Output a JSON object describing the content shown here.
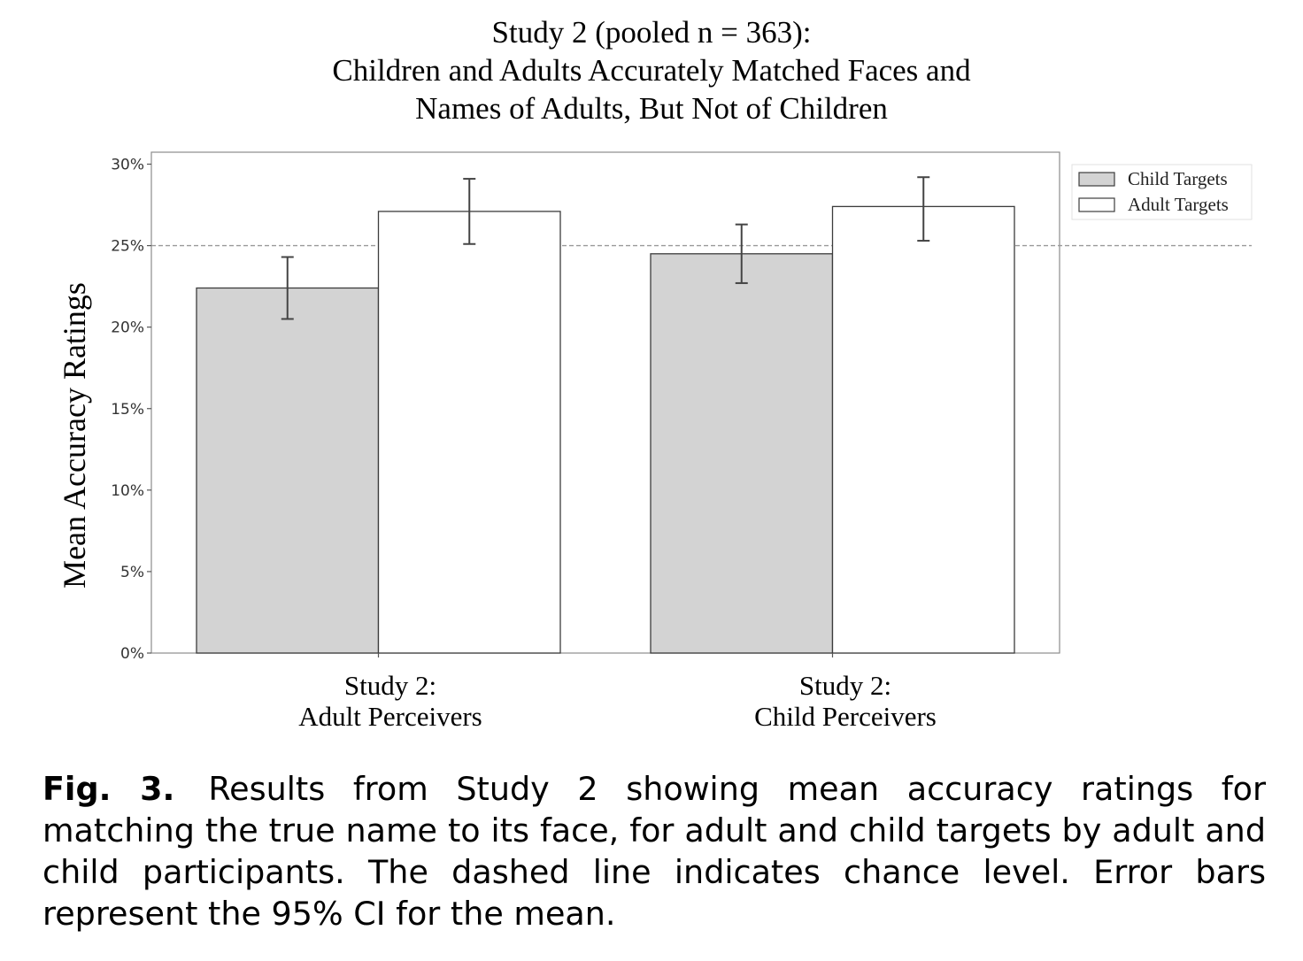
{
  "chart_data": {
    "type": "bar",
    "title_lines": [
      "Study 2 (pooled n = 363):",
      "Children and Adults Accurately Matched Faces and",
      "Names of Adults, But Not of Children"
    ],
    "ylabel": "Mean Accuracy Ratings",
    "xlabel": "",
    "categories": [
      [
        "Study 2:",
        "Adult Perceivers"
      ],
      [
        "Study 2:",
        "Child Perceivers"
      ]
    ],
    "series": [
      {
        "name": "Child Targets",
        "color": "#d3d3d3",
        "values": [
          22.4,
          24.5
        ],
        "ci_low": [
          20.5,
          22.7
        ],
        "ci_high": [
          24.3,
          26.3
        ]
      },
      {
        "name": "Adult Targets",
        "color": "#ffffff",
        "values": [
          27.1,
          27.4
        ],
        "ci_low": [
          25.1,
          25.3
        ],
        "ci_high": [
          29.1,
          29.2
        ]
      }
    ],
    "ylim": [
      0,
      30.7
    ],
    "yticks": [
      0,
      5,
      10,
      15,
      20,
      25,
      30
    ],
    "ytick_labels": [
      "0%",
      "5%",
      "10%",
      "15%",
      "20%",
      "25%",
      "30%"
    ],
    "reference_line": {
      "value": 25,
      "style": "dashed"
    },
    "legend_position": "outside-top-right",
    "grid": false
  },
  "caption": {
    "label": "Fig. 3.",
    "text": "Results from Study 2 showing mean accuracy ratings for matching the true name to its face, for adult and child targets by adult and child participants. The dashed line indicates chance level. Error bars represent the 95% CI for the mean."
  }
}
